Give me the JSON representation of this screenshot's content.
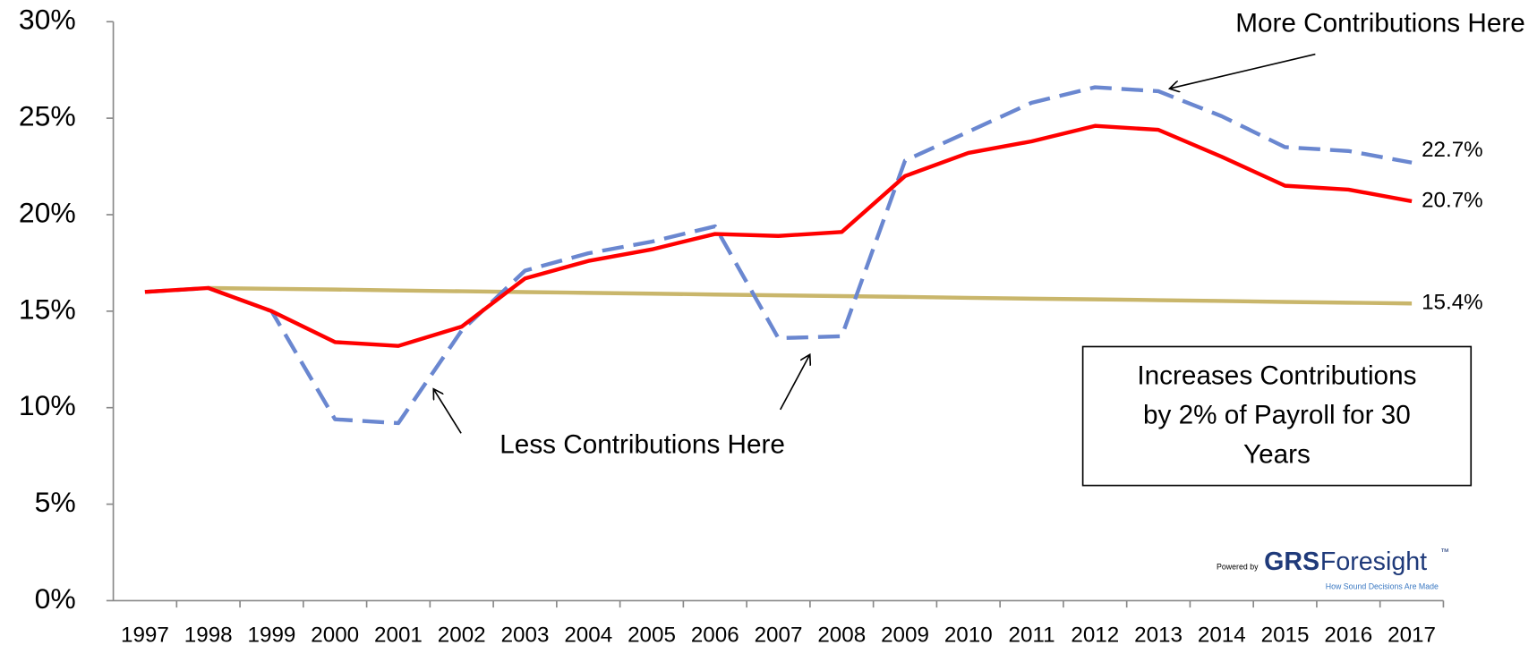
{
  "chart_data": {
    "type": "line",
    "categories": [
      "1997",
      "1998",
      "1999",
      "2000",
      "2001",
      "2002",
      "2003",
      "2004",
      "2005",
      "2006",
      "2007",
      "2008",
      "2009",
      "2010",
      "2011",
      "2012",
      "2013",
      "2014",
      "2015",
      "2016",
      "2017"
    ],
    "ylim": [
      0,
      30
    ],
    "yticks": [
      {
        "value": 0,
        "label": "0%"
      },
      {
        "value": 5,
        "label": "5%"
      },
      {
        "value": 10,
        "label": "10%"
      },
      {
        "value": 15,
        "label": "15%"
      },
      {
        "value": 20,
        "label": "20%"
      },
      {
        "value": 25,
        "label": "25%"
      },
      {
        "value": 30,
        "label": "30%"
      }
    ],
    "series": [
      {
        "color": "#c9b66b",
        "dashed": false,
        "values": [
          null,
          16.2,
          16.16,
          16.12,
          16.07,
          16.03,
          15.99,
          15.95,
          15.91,
          15.86,
          15.82,
          15.78,
          15.74,
          15.69,
          15.65,
          15.61,
          15.57,
          15.53,
          15.48,
          15.44,
          15.4
        ],
        "value_labels": [
          null,
          null,
          null,
          null,
          null,
          null,
          null,
          null,
          null,
          null,
          null,
          null,
          null,
          null,
          null,
          null,
          null,
          null,
          null,
          null,
          "15.4%"
        ]
      },
      {
        "color": "#6a87d0",
        "dashed": true,
        "values": [
          16.0,
          16.2,
          15.0,
          9.4,
          9.2,
          14.0,
          17.1,
          18.0,
          18.6,
          19.4,
          13.6,
          13.7,
          22.8,
          24.3,
          25.8,
          26.6,
          26.4,
          25.1,
          23.5,
          23.3,
          22.7
        ],
        "value_labels": [
          null,
          null,
          null,
          null,
          null,
          null,
          null,
          null,
          null,
          null,
          null,
          null,
          null,
          null,
          null,
          null,
          null,
          null,
          null,
          null,
          "22.7%"
        ]
      },
      {
        "color": "#ff0000",
        "dashed": false,
        "values": [
          16.0,
          16.2,
          15.0,
          13.4,
          13.2,
          14.2,
          16.7,
          17.6,
          18.2,
          19.0,
          18.9,
          19.1,
          22.0,
          23.2,
          23.8,
          24.6,
          24.4,
          23.0,
          21.5,
          21.3,
          20.7
        ],
        "value_labels": [
          null,
          null,
          null,
          null,
          null,
          null,
          null,
          null,
          null,
          null,
          null,
          null,
          null,
          null,
          null,
          null,
          null,
          null,
          null,
          null,
          "20.7%"
        ]
      }
    ],
    "annotations": {
      "more": "More Contributions Here",
      "less": "Less Contributions Here",
      "box": [
        "Increases Contributions",
        "by 2% of Payroll for 30",
        "Years"
      ]
    },
    "logo": {
      "powered": "Powered by",
      "grs": "GRS",
      "foresight": "Foresight",
      "tm": "™",
      "tagline": "How Sound Decisions Are Made"
    }
  }
}
